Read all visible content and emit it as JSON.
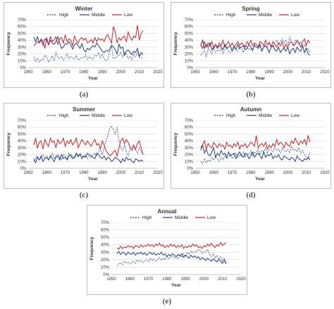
{
  "figure": {
    "captions": [
      "(a)",
      "(b)",
      "(c)",
      "(d)",
      "(e)"
    ]
  },
  "colors": {
    "high": "#1f3f8f",
    "middle": "#1f3f8f",
    "low": "#d62020",
    "grid": "#d9d9d9"
  },
  "chart_data": [
    {
      "type": "line",
      "title": "Winter",
      "xlabel": "Year",
      "ylabel": "Frequency",
      "xlim": [
        1950,
        2020
      ],
      "ylim": [
        0,
        70
      ],
      "xticks": [
        1950,
        1960,
        1970,
        1980,
        1990,
        2000,
        2010,
        2020
      ],
      "yticks": [
        "0%",
        "10%",
        "20%",
        "30%",
        "40%",
        "50%",
        "60%",
        "70%"
      ],
      "grid": "horizontal",
      "legend": "top",
      "x_start": 1953,
      "series": [
        {
          "name": "High",
          "style": "dashed",
          "values": [
            16,
            9,
            14,
            8,
            12,
            11,
            18,
            16,
            8,
            12,
            17,
            10,
            22,
            15,
            13,
            16,
            11,
            14,
            20,
            13,
            16,
            14,
            12,
            18,
            11,
            13,
            15,
            14,
            19,
            12,
            16,
            13,
            12,
            18,
            17,
            22,
            14,
            20,
            13,
            10,
            12,
            25,
            31,
            13,
            14,
            16,
            18,
            23,
            15,
            22,
            19,
            13,
            17,
            11,
            20,
            16,
            22,
            15,
            14,
            12
          ]
        },
        {
          "name": "Middle",
          "style": "solid",
          "values": [
            45,
            38,
            45,
            36,
            40,
            33,
            42,
            40,
            33,
            40,
            36,
            34,
            38,
            45,
            36,
            28,
            30,
            35,
            34,
            38,
            33,
            27,
            33,
            36,
            32,
            28,
            35,
            26,
            23,
            28,
            26,
            29,
            32,
            30,
            36,
            32,
            28,
            24,
            22,
            25,
            24,
            26,
            33,
            30,
            26,
            20,
            34,
            28,
            30,
            18,
            24,
            26,
            22,
            19,
            24,
            22,
            28,
            16,
            22,
            19
          ]
        },
        {
          "name": "Low",
          "style": "solid",
          "values": [
            32,
            35,
            38,
            36,
            42,
            38,
            28,
            44,
            33,
            45,
            38,
            40,
            45,
            34,
            42,
            44,
            36,
            48,
            38,
            42,
            40,
            32,
            46,
            40,
            36,
            42,
            44,
            40,
            43,
            36,
            38,
            41,
            36,
            44,
            38,
            43,
            40,
            42,
            38,
            45,
            48,
            42,
            36,
            60,
            52,
            36,
            44,
            40,
            44,
            46,
            38,
            52,
            44,
            40,
            46,
            44,
            62,
            40,
            50,
            54
          ]
        }
      ]
    },
    {
      "type": "line",
      "title": "Spring",
      "xlabel": "Year",
      "ylabel": "Frequency",
      "xlim": [
        1950,
        2020
      ],
      "ylim": [
        0,
        70
      ],
      "xticks": [
        1950,
        1960,
        1970,
        1980,
        1990,
        2000,
        2010,
        2020
      ],
      "yticks": [
        "0%",
        "10%",
        "20%",
        "30%",
        "40%",
        "50%",
        "60%",
        "70%"
      ],
      "grid": "horizontal",
      "legend": "top",
      "x_start": 1953,
      "series": [
        {
          "name": "High",
          "style": "dashed",
          "values": [
            18,
            22,
            25,
            16,
            28,
            24,
            20,
            30,
            22,
            26,
            24,
            28,
            20,
            26,
            30,
            24,
            22,
            28,
            32,
            26,
            24,
            30,
            28,
            22,
            32,
            30,
            26,
            28,
            24,
            34,
            30,
            28,
            32,
            26,
            30,
            34,
            28,
            38,
            32,
            30,
            36,
            40,
            34,
            38,
            42,
            36,
            40,
            34,
            44,
            38,
            32,
            40,
            36,
            34,
            38,
            30,
            34,
            26,
            28,
            22
          ]
        },
        {
          "name": "Middle",
          "style": "solid",
          "values": [
            32,
            40,
            28,
            34,
            30,
            36,
            26,
            30,
            34,
            28,
            32,
            30,
            26,
            34,
            28,
            30,
            32,
            24,
            30,
            26,
            34,
            28,
            30,
            32,
            26,
            28,
            34,
            30,
            26,
            32,
            30,
            28,
            34,
            24,
            30,
            32,
            28,
            22,
            30,
            32,
            26,
            24,
            30,
            22,
            26,
            28,
            24,
            30,
            20,
            26,
            28,
            22,
            30,
            26,
            24,
            32,
            22,
            28,
            20,
            18
          ]
        },
        {
          "name": "Low",
          "style": "solid",
          "values": [
            34,
            28,
            38,
            30,
            36,
            32,
            38,
            28,
            34,
            30,
            36,
            32,
            40,
            30,
            34,
            38,
            32,
            36,
            30,
            34,
            38,
            32,
            36,
            34,
            30,
            38,
            34,
            40,
            32,
            36,
            34,
            30,
            38,
            36,
            32,
            40,
            34,
            36,
            30,
            38,
            34,
            30,
            36,
            32,
            38,
            28,
            34,
            30,
            36,
            38,
            32,
            34,
            40,
            36,
            30,
            38,
            42,
            32,
            40,
            36
          ]
        }
      ]
    },
    {
      "type": "line",
      "title": "Summer",
      "xlabel": "Year",
      "ylabel": "Frequency",
      "xlim": [
        1950,
        2020
      ],
      "ylim": [
        0,
        70
      ],
      "xticks": [
        1950,
        1960,
        1970,
        1980,
        1990,
        2000,
        2010,
        2020
      ],
      "yticks": [
        "0%",
        "10%",
        "20%",
        "30%",
        "40%",
        "50%",
        "60%",
        "70%"
      ],
      "grid": "horizontal",
      "legend": "top",
      "x_start": 1953,
      "series": [
        {
          "name": "High",
          "style": "dashed",
          "values": [
            10,
            14,
            18,
            12,
            16,
            20,
            14,
            18,
            12,
            16,
            22,
            14,
            18,
            20,
            16,
            12,
            20,
            18,
            14,
            22,
            16,
            18,
            14,
            20,
            16,
            22,
            18,
            16,
            20,
            14,
            18,
            16,
            20,
            22,
            18,
            24,
            28,
            20,
            30,
            40,
            48,
            58,
            62,
            56,
            50,
            60,
            40,
            30,
            26,
            34,
            24,
            18,
            28,
            32,
            30,
            26,
            22,
            30,
            24,
            20
          ]
        },
        {
          "name": "Middle",
          "style": "solid",
          "values": [
            14,
            8,
            16,
            12,
            18,
            10,
            14,
            16,
            12,
            18,
            14,
            10,
            16,
            18,
            12,
            20,
            14,
            16,
            12,
            18,
            20,
            14,
            16,
            22,
            18,
            20,
            14,
            18,
            16,
            22,
            20,
            18,
            16,
            14,
            22,
            20,
            16,
            14,
            18,
            12,
            16,
            14,
            10,
            12,
            16,
            14,
            12,
            8,
            14,
            10,
            16,
            12,
            14,
            10,
            8,
            14,
            12,
            10,
            12,
            10
          ]
        },
        {
          "name": "Low",
          "style": "solid",
          "values": [
            34,
            44,
            30,
            38,
            40,
            28,
            42,
            36,
            32,
            44,
            38,
            40,
            30,
            42,
            36,
            38,
            44,
            32,
            40,
            36,
            42,
            34,
            38,
            44,
            30,
            36,
            42,
            38,
            34,
            40,
            36,
            32,
            38,
            42,
            34,
            36,
            28,
            40,
            34,
            26,
            22,
            18,
            20,
            24,
            26,
            18,
            30,
            40,
            44,
            36,
            42,
            38,
            30,
            26,
            34,
            28,
            36,
            40,
            30,
            20
          ]
        }
      ]
    },
    {
      "type": "line",
      "title": "Autumn",
      "xlabel": "Year",
      "ylabel": "Frequency",
      "xlim": [
        1950,
        2020
      ],
      "ylim": [
        0,
        70
      ],
      "xticks": [
        1950,
        1960,
        1970,
        1980,
        1990,
        2000,
        2010,
        2020
      ],
      "yticks": [
        "0%",
        "10%",
        "20%",
        "30%",
        "40%",
        "50%",
        "60%",
        "70%"
      ],
      "grid": "horizontal",
      "legend": "top",
      "x_start": 1953,
      "series": [
        {
          "name": "High",
          "style": "dashed",
          "values": [
            10,
            6,
            14,
            8,
            12,
            10,
            16,
            12,
            18,
            14,
            10,
            16,
            12,
            18,
            14,
            16,
            20,
            14,
            18,
            22,
            16,
            20,
            18,
            24,
            16,
            22,
            20,
            26,
            18,
            24,
            22,
            28,
            20,
            26,
            24,
            30,
            22,
            28,
            26,
            24,
            30,
            26,
            28,
            22,
            30,
            26,
            24,
            28,
            22,
            32,
            26,
            28,
            24,
            30,
            22,
            26,
            20,
            16,
            14,
            24
          ]
        },
        {
          "name": "Middle",
          "style": "solid",
          "values": [
            26,
            34,
            22,
            28,
            20,
            18,
            24,
            30,
            16,
            22,
            18,
            26,
            20,
            22,
            16,
            24,
            18,
            20,
            22,
            14,
            20,
            24,
            18,
            16,
            22,
            20,
            14,
            18,
            24,
            16,
            20,
            22,
            18,
            14,
            24,
            16,
            20,
            18,
            22,
            14,
            18,
            16,
            20,
            14,
            12,
            18,
            16,
            14,
            12,
            16,
            14,
            10,
            18,
            14,
            12,
            10,
            14,
            12,
            16,
            12
          ]
        },
        {
          "name": "Low",
          "style": "solid",
          "values": [
            30,
            34,
            40,
            28,
            36,
            32,
            30,
            38,
            34,
            30,
            36,
            32,
            34,
            28,
            38,
            32,
            34,
            30,
            36,
            32,
            38,
            28,
            34,
            32,
            36,
            30,
            34,
            38,
            36,
            32,
            48,
            30,
            34,
            36,
            32,
            38,
            28,
            34,
            30,
            36,
            32,
            42,
            34,
            38,
            36,
            30,
            38,
            34,
            32,
            40,
            36,
            44,
            38,
            34,
            40,
            36,
            42,
            34,
            48,
            38
          ]
        }
      ]
    },
    {
      "type": "line",
      "title": "Annual",
      "xlabel": "Year",
      "ylabel": "Frequency",
      "xlim": [
        1950,
        2020
      ],
      "ylim": [
        0,
        70
      ],
      "xticks": [
        1950,
        1960,
        1970,
        1980,
        1990,
        2000,
        2010,
        2020
      ],
      "yticks": [
        "0%",
        "10%",
        "20%",
        "30%",
        "40%",
        "50%",
        "60%",
        "70%"
      ],
      "grid": "horizontal",
      "legend": "top",
      "x_start": 1953,
      "series": [
        {
          "name": "High",
          "style": "dashed",
          "values": [
            12,
            14,
            16,
            13,
            18,
            15,
            17,
            14,
            16,
            18,
            15,
            20,
            17,
            19,
            16,
            18,
            20,
            17,
            22,
            19,
            21,
            18,
            20,
            23,
            19,
            22,
            20,
            24,
            21,
            23,
            25,
            22,
            24,
            21,
            26,
            23,
            28,
            24,
            30,
            27,
            32,
            29,
            31,
            30,
            34,
            32,
            28,
            31,
            30,
            34,
            27,
            24,
            28,
            22,
            26,
            20,
            24,
            18,
            22,
            16
          ]
        },
        {
          "name": "Middle",
          "style": "solid",
          "values": [
            28,
            31,
            27,
            30,
            29,
            26,
            30,
            28,
            27,
            30,
            26,
            29,
            28,
            30,
            27,
            29,
            26,
            28,
            30,
            27,
            29,
            26,
            28,
            27,
            30,
            26,
            28,
            24,
            27,
            25,
            28,
            26,
            24,
            27,
            25,
            28,
            23,
            26,
            24,
            22,
            26,
            23,
            25,
            22,
            24,
            20,
            23,
            21,
            19,
            22,
            20,
            18,
            21,
            19,
            17,
            20,
            18,
            15,
            19,
            14
          ]
        },
        {
          "name": "Low",
          "style": "solid",
          "values": [
            36,
            34,
            38,
            35,
            37,
            36,
            39,
            37,
            38,
            35,
            39,
            38,
            36,
            40,
            37,
            39,
            38,
            41,
            38,
            40,
            37,
            41,
            39,
            42,
            38,
            40,
            36,
            39,
            37,
            41,
            38,
            40,
            36,
            39,
            37,
            40,
            35,
            38,
            36,
            39,
            37,
            41,
            38,
            40,
            36,
            38,
            35,
            39,
            37,
            41,
            38,
            42,
            39,
            36,
            40,
            38,
            43,
            39,
            41,
            43
          ]
        }
      ]
    }
  ]
}
